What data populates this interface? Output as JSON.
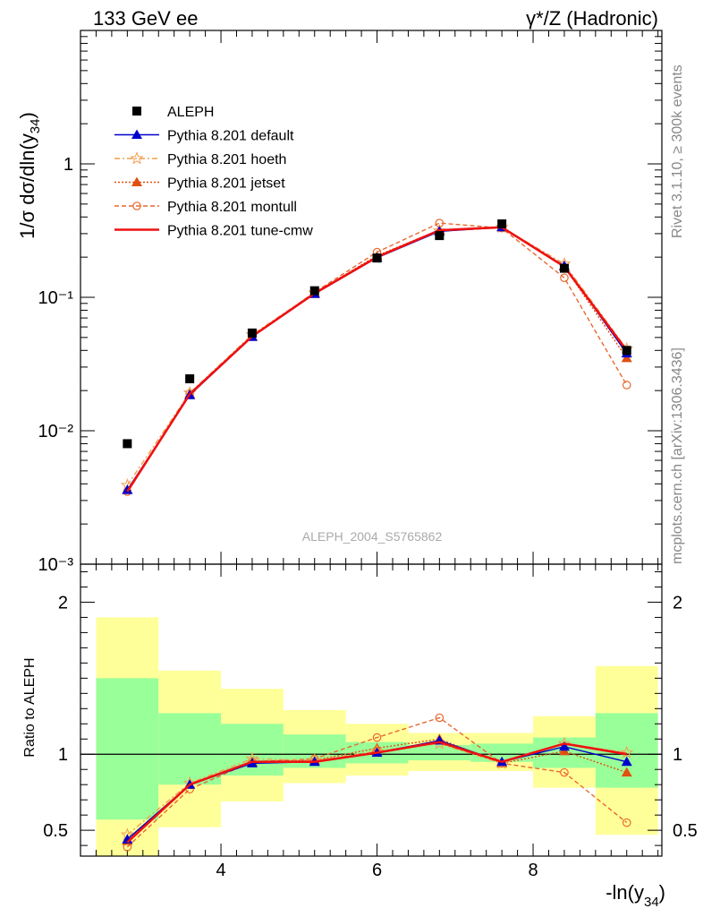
{
  "header": {
    "left": "133 GeV ee",
    "right": "γ*/Z (Hadronic)"
  },
  "side_labels": {
    "top": "Rivet 3.1.10, ≥ 300k events",
    "bottom": "mcplots.cern.ch [arXiv:1306.3436]"
  },
  "watermark": "ALEPH_2004_S5765862",
  "colors": {
    "aleph": "#000000",
    "default": "#0000cc",
    "hoeth": "#f0a050",
    "jetset": "#e05010",
    "montull": "#e86830",
    "cmw": "#ee1111",
    "band_inner": "#99ff99",
    "band_outer": "#ffff99"
  },
  "chart_data": {
    "type": "line",
    "x": [
      2.8,
      3.6,
      4.4,
      5.2,
      6.0,
      6.8,
      7.6,
      8.4,
      9.2
    ],
    "xlabel": "-ln(y34)",
    "main": {
      "ylabel": "1/σ dσ/dln(y34)",
      "yscale": "log",
      "ylim": [
        0.001,
        10
      ],
      "yticks": [
        "10⁻³",
        "10⁻²",
        "10⁻¹",
        "1"
      ]
    },
    "ratio": {
      "ylabel": "Ratio to ALEPH",
      "ylim": [
        0.33,
        2.25
      ],
      "yticks": [
        "0.5",
        "1",
        "2"
      ]
    },
    "xticks": [
      "4",
      "6",
      "8"
    ],
    "xlim": [
      2.2,
      9.65
    ],
    "series": [
      {
        "name": "ALEPH",
        "values": [
          0.008,
          0.0245,
          0.054,
          0.112,
          0.197,
          0.29,
          0.355,
          0.165,
          0.04
        ]
      },
      {
        "name": "Pythia 8.201 default",
        "values": [
          0.0036,
          0.0185,
          0.0505,
          0.106,
          0.198,
          0.312,
          0.335,
          0.172,
          0.038
        ]
      },
      {
        "name": "Pythia 8.201 hoeth",
        "values": [
          0.0039,
          0.0192,
          0.0525,
          0.108,
          0.201,
          0.315,
          0.335,
          0.178,
          0.041
        ]
      },
      {
        "name": "Pythia 8.201 jetset",
        "values": [
          0.0036,
          0.0188,
          0.051,
          0.108,
          0.205,
          0.32,
          0.335,
          0.17,
          0.035
        ]
      },
      {
        "name": "Pythia 8.201 montull",
        "values": [
          0.0035,
          0.019,
          0.051,
          0.109,
          0.218,
          0.36,
          0.33,
          0.14,
          0.022
        ]
      },
      {
        "name": "Pythia 8.201 tune-cmw",
        "values": [
          0.0035,
          0.0188,
          0.051,
          0.107,
          0.2,
          0.318,
          0.335,
          0.17,
          0.04
        ]
      }
    ],
    "ratios": [
      [
        0.44,
        0.8,
        0.94,
        0.95,
        1.01,
        1.09,
        0.95,
        1.05,
        0.95
      ],
      [
        0.47,
        0.81,
        0.97,
        0.96,
        1.02,
        1.07,
        0.94,
        1.07,
        1.01
      ],
      [
        0.43,
        0.8,
        0.95,
        0.96,
        1.04,
        1.1,
        0.94,
        1.02,
        0.88
      ],
      [
        0.39,
        0.77,
        0.95,
        0.97,
        1.11,
        1.24,
        0.94,
        0.88,
        0.55
      ],
      [
        0.42,
        0.8,
        0.95,
        0.95,
        1.01,
        1.08,
        0.95,
        1.07,
        1.0
      ]
    ],
    "bins": [
      2.4,
      3.2,
      4.0,
      4.8,
      5.6,
      6.4,
      7.2,
      8.0,
      8.8,
      9.6
    ],
    "band_inner": [
      [
        0.57,
        1.5
      ],
      [
        0.8,
        1.27
      ],
      [
        0.86,
        1.2
      ],
      [
        0.91,
        1.13
      ],
      [
        0.94,
        1.08
      ],
      [
        0.96,
        1.06
      ],
      [
        0.95,
        1.07
      ],
      [
        0.91,
        1.11
      ],
      [
        0.78,
        1.27
      ]
    ],
    "band_outer": [
      [
        0.33,
        1.9
      ],
      [
        0.52,
        1.55
      ],
      [
        0.69,
        1.43
      ],
      [
        0.81,
        1.29
      ],
      [
        0.86,
        1.2
      ],
      [
        0.89,
        1.14
      ],
      [
        0.89,
        1.14
      ],
      [
        0.78,
        1.25
      ],
      [
        0.47,
        1.58
      ]
    ]
  }
}
